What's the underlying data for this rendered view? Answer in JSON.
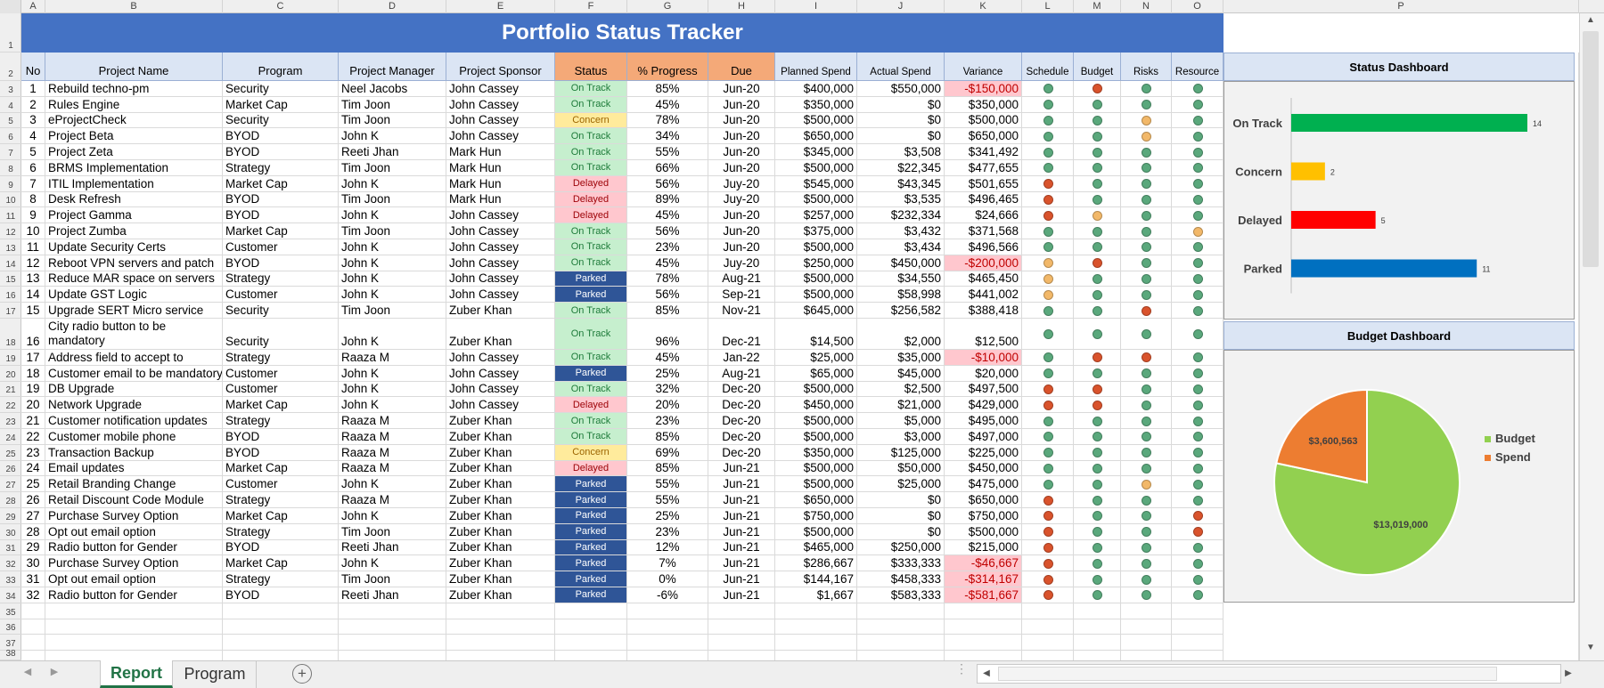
{
  "column_letters": [
    "A",
    "B",
    "C",
    "D",
    "E",
    "F",
    "G",
    "H",
    "I",
    "J",
    "K",
    "L",
    "M",
    "N",
    "O",
    "P"
  ],
  "title": "Portfolio Status Tracker",
  "headers": {
    "no": "No",
    "project_name": "Project Name",
    "program": "Program",
    "project_manager": "Project Manager",
    "project_sponsor": "Project Sponsor",
    "status": "Status",
    "progress": "% Progress",
    "due": "Due",
    "planned_spend": "Planned Spend",
    "actual_spend": "Actual Spend",
    "variance": "Variance",
    "schedule": "Schedule",
    "budget": "Budget",
    "risks": "Risks",
    "resource": "Resource"
  },
  "rows": [
    {
      "row": "3",
      "no": "1",
      "name": "Rebuild techno-pm",
      "program": "Security",
      "pm": "Neel Jacobs",
      "sponsor": "John Cassey",
      "status": "On Track",
      "progress": "85%",
      "due": "Jun-20",
      "planned": "$400,000",
      "actual": "$550,000",
      "variance": "-$150,000",
      "schedule": "green",
      "budget": "red",
      "risks": "green",
      "resource": "green"
    },
    {
      "row": "4",
      "no": "2",
      "name": "Rules Engine",
      "program": "Market Cap",
      "pm": "Tim Joon",
      "sponsor": "John Cassey",
      "status": "On Track",
      "progress": "45%",
      "due": "Jun-20",
      "planned": "$350,000",
      "actual": "$0",
      "variance": "$350,000",
      "schedule": "green",
      "budget": "green",
      "risks": "green",
      "resource": "green"
    },
    {
      "row": "5",
      "no": "3",
      "name": "eProjectCheck",
      "program": "Security",
      "pm": "Tim Joon",
      "sponsor": "John Cassey",
      "status": "Concern",
      "progress": "78%",
      "due": "Jun-20",
      "planned": "$500,000",
      "actual": "$0",
      "variance": "$500,000",
      "schedule": "green",
      "budget": "green",
      "risks": "amber",
      "resource": "green"
    },
    {
      "row": "6",
      "no": "4",
      "name": "Project Beta",
      "program": "BYOD",
      "pm": "John K",
      "sponsor": "John Cassey",
      "status": "On Track",
      "progress": "34%",
      "due": "Jun-20",
      "planned": "$650,000",
      "actual": "$0",
      "variance": "$650,000",
      "schedule": "green",
      "budget": "green",
      "risks": "amber",
      "resource": "green"
    },
    {
      "row": "7",
      "no": "5",
      "name": "Project Zeta",
      "program": "BYOD",
      "pm": "Reeti Jhan",
      "sponsor": "Mark Hun",
      "status": "On Track",
      "progress": "55%",
      "due": "Jun-20",
      "planned": "$345,000",
      "actual": "$3,508",
      "variance": "$341,492",
      "schedule": "green",
      "budget": "green",
      "risks": "green",
      "resource": "green"
    },
    {
      "row": "8",
      "no": "6",
      "name": "BRMS Implementation",
      "program": "Strategy",
      "pm": "Tim Joon",
      "sponsor": "Mark Hun",
      "status": "On Track",
      "progress": "66%",
      "due": "Jun-20",
      "planned": "$500,000",
      "actual": "$22,345",
      "variance": "$477,655",
      "schedule": "green",
      "budget": "green",
      "risks": "green",
      "resource": "green"
    },
    {
      "row": "9",
      "no": "7",
      "name": "ITIL Implementation",
      "program": "Market Cap",
      "pm": "John K",
      "sponsor": "Mark Hun",
      "status": "Delayed",
      "progress": "56%",
      "due": "Juy-20",
      "planned": "$545,000",
      "actual": "$43,345",
      "variance": "$501,655",
      "schedule": "red",
      "budget": "green",
      "risks": "green",
      "resource": "green"
    },
    {
      "row": "10",
      "no": "8",
      "name": "Desk Refresh",
      "program": "BYOD",
      "pm": "Tim Joon",
      "sponsor": "Mark Hun",
      "status": "Delayed",
      "progress": "89%",
      "due": "Juy-20",
      "planned": "$500,000",
      "actual": "$3,535",
      "variance": "$496,465",
      "schedule": "red",
      "budget": "green",
      "risks": "green",
      "resource": "green"
    },
    {
      "row": "11",
      "no": "9",
      "name": "Project Gamma",
      "program": "BYOD",
      "pm": "John K",
      "sponsor": "John Cassey",
      "status": "Delayed",
      "progress": "45%",
      "due": "Jun-20",
      "planned": "$257,000",
      "actual": "$232,334",
      "variance": "$24,666",
      "schedule": "red",
      "budget": "amber",
      "risks": "green",
      "resource": "green"
    },
    {
      "row": "12",
      "no": "10",
      "name": "Project Zumba",
      "program": "Market Cap",
      "pm": "Tim Joon",
      "sponsor": "John Cassey",
      "status": "On Track",
      "progress": "56%",
      "due": "Jun-20",
      "planned": "$375,000",
      "actual": "$3,432",
      "variance": "$371,568",
      "schedule": "green",
      "budget": "green",
      "risks": "green",
      "resource": "amber"
    },
    {
      "row": "13",
      "no": "11",
      "name": "Update Security Certs",
      "program": "Customer",
      "pm": "John K",
      "sponsor": "John Cassey",
      "status": "On Track",
      "progress": "23%",
      "due": "Jun-20",
      "planned": "$500,000",
      "actual": "$3,434",
      "variance": "$496,566",
      "schedule": "green",
      "budget": "green",
      "risks": "green",
      "resource": "green"
    },
    {
      "row": "14",
      "no": "12",
      "name": "Reboot VPN servers and patch",
      "program": "BYOD",
      "pm": "John K",
      "sponsor": "John Cassey",
      "status": "On Track",
      "progress": "45%",
      "due": "Juy-20",
      "planned": "$250,000",
      "actual": "$450,000",
      "variance": "-$200,000",
      "schedule": "amber",
      "budget": "red",
      "risks": "green",
      "resource": "green"
    },
    {
      "row": "15",
      "no": "13",
      "name": "Reduce MAR space on servers",
      "program": "Strategy",
      "pm": "John K",
      "sponsor": "John Cassey",
      "status": "Parked",
      "progress": "78%",
      "due": "Aug-21",
      "planned": "$500,000",
      "actual": "$34,550",
      "variance": "$465,450",
      "schedule": "amber",
      "budget": "green",
      "risks": "green",
      "resource": "green"
    },
    {
      "row": "16",
      "no": "14",
      "name": "Update GST Logic",
      "program": "Customer",
      "pm": "John K",
      "sponsor": "John Cassey",
      "status": "Parked",
      "progress": "56%",
      "due": "Sep-21",
      "planned": "$500,000",
      "actual": "$58,998",
      "variance": "$441,002",
      "schedule": "amber",
      "budget": "green",
      "risks": "green",
      "resource": "green"
    },
    {
      "row": "17",
      "no": "15",
      "name": "Upgrade SERT Micro service",
      "program": "Security",
      "pm": "Tim Joon",
      "sponsor": "Zuber Khan",
      "status": "On Track",
      "progress": "85%",
      "due": "Nov-21",
      "planned": "$645,000",
      "actual": "$256,582",
      "variance": "$388,418",
      "schedule": "green",
      "budget": "green",
      "risks": "red",
      "resource": "green"
    },
    {
      "row": "18",
      "no": "16",
      "name": "City radio button to be mandatory",
      "program": "Security",
      "pm": "John K",
      "sponsor": "Zuber Khan",
      "status": "On Track",
      "progress": "96%",
      "due": "Dec-21",
      "planned": "$14,500",
      "actual": "$2,000",
      "variance": "$12,500",
      "schedule": "green",
      "budget": "green",
      "risks": "green",
      "resource": "green"
    },
    {
      "row": "19",
      "no": "17",
      "name": "Address field to accept to",
      "program": "Strategy",
      "pm": "Raaza M",
      "sponsor": "John Cassey",
      "status": "On Track",
      "progress": "45%",
      "due": "Jan-22",
      "planned": "$25,000",
      "actual": "$35,000",
      "variance": "-$10,000",
      "schedule": "green",
      "budget": "red",
      "risks": "red",
      "resource": "green"
    },
    {
      "row": "20",
      "no": "18",
      "name": "Customer email to be mandatory",
      "program": "Customer",
      "pm": "John K",
      "sponsor": "John Cassey",
      "status": "Parked",
      "progress": "25%",
      "due": "Aug-21",
      "planned": "$65,000",
      "actual": "$45,000",
      "variance": "$20,000",
      "schedule": "green",
      "budget": "green",
      "risks": "green",
      "resource": "green"
    },
    {
      "row": "21",
      "no": "19",
      "name": "DB Upgrade",
      "program": "Customer",
      "pm": "John K",
      "sponsor": "John Cassey",
      "status": "On Track",
      "progress": "32%",
      "due": "Dec-20",
      "planned": "$500,000",
      "actual": "$2,500",
      "variance": "$497,500",
      "schedule": "red",
      "budget": "red",
      "risks": "green",
      "resource": "green"
    },
    {
      "row": "22",
      "no": "20",
      "name": "Network Upgrade",
      "program": "Market Cap",
      "pm": "John K",
      "sponsor": "John Cassey",
      "status": "Delayed",
      "progress": "20%",
      "due": "Dec-20",
      "planned": "$450,000",
      "actual": "$21,000",
      "variance": "$429,000",
      "schedule": "red",
      "budget": "red",
      "risks": "green",
      "resource": "green"
    },
    {
      "row": "23",
      "no": "21",
      "name": "Customer notification updates",
      "program": "Strategy",
      "pm": "Raaza M",
      "sponsor": "Zuber Khan",
      "status": "On Track",
      "progress": "23%",
      "due": "Dec-20",
      "planned": "$500,000",
      "actual": "$5,000",
      "variance": "$495,000",
      "schedule": "green",
      "budget": "green",
      "risks": "green",
      "resource": "green"
    },
    {
      "row": "24",
      "no": "22",
      "name": "Customer mobile phone",
      "program": "BYOD",
      "pm": "Raaza M",
      "sponsor": "Zuber Khan",
      "status": "On Track",
      "progress": "85%",
      "due": "Dec-20",
      "planned": "$500,000",
      "actual": "$3,000",
      "variance": "$497,000",
      "schedule": "green",
      "budget": "green",
      "risks": "green",
      "resource": "green"
    },
    {
      "row": "25",
      "no": "23",
      "name": "Transaction Backup",
      "program": "BYOD",
      "pm": "Raaza M",
      "sponsor": "Zuber Khan",
      "status": "Concern",
      "progress": "69%",
      "due": "Dec-20",
      "planned": "$350,000",
      "actual": "$125,000",
      "variance": "$225,000",
      "schedule": "green",
      "budget": "green",
      "risks": "green",
      "resource": "green"
    },
    {
      "row": "26",
      "no": "24",
      "name": "Email updates",
      "program": "Market Cap",
      "pm": "Raaza M",
      "sponsor": "Zuber Khan",
      "status": "Delayed",
      "progress": "85%",
      "due": "Jun-21",
      "planned": "$500,000",
      "actual": "$50,000",
      "variance": "$450,000",
      "schedule": "green",
      "budget": "green",
      "risks": "green",
      "resource": "green"
    },
    {
      "row": "27",
      "no": "25",
      "name": "Retail Branding Change",
      "program": "Customer",
      "pm": "John K",
      "sponsor": "Zuber Khan",
      "status": "Parked",
      "progress": "55%",
      "due": "Jun-21",
      "planned": "$500,000",
      "actual": "$25,000",
      "variance": "$475,000",
      "schedule": "green",
      "budget": "green",
      "risks": "amber",
      "resource": "green"
    },
    {
      "row": "28",
      "no": "26",
      "name": "Retail Discount Code Module",
      "program": "Strategy",
      "pm": "Raaza M",
      "sponsor": "Zuber Khan",
      "status": "Parked",
      "progress": "55%",
      "due": "Jun-21",
      "planned": "$650,000",
      "actual": "$0",
      "variance": "$650,000",
      "schedule": "red",
      "budget": "green",
      "risks": "green",
      "resource": "green"
    },
    {
      "row": "29",
      "no": "27",
      "name": "Purchase Survey Option",
      "program": "Market Cap",
      "pm": "John K",
      "sponsor": "Zuber Khan",
      "status": "Parked",
      "progress": "25%",
      "due": "Jun-21",
      "planned": "$750,000",
      "actual": "$0",
      "variance": "$750,000",
      "schedule": "red",
      "budget": "green",
      "risks": "green",
      "resource": "red"
    },
    {
      "row": "30",
      "no": "28",
      "name": "Opt out email option",
      "program": "Strategy",
      "pm": "Tim Joon",
      "sponsor": "Zuber Khan",
      "status": "Parked",
      "progress": "23%",
      "due": "Jun-21",
      "planned": "$500,000",
      "actual": "$0",
      "variance": "$500,000",
      "schedule": "red",
      "budget": "green",
      "risks": "green",
      "resource": "red"
    },
    {
      "row": "31",
      "no": "29",
      "name": "Radio button for Gender",
      "program": "BYOD",
      "pm": "Reeti Jhan",
      "sponsor": "Zuber Khan",
      "status": "Parked",
      "progress": "12%",
      "due": "Jun-21",
      "planned": "$465,000",
      "actual": "$250,000",
      "variance": "$215,000",
      "schedule": "red",
      "budget": "green",
      "risks": "green",
      "resource": "green"
    },
    {
      "row": "32",
      "no": "30",
      "name": "Purchase Survey Option",
      "program": "Market Cap",
      "pm": "John K",
      "sponsor": "Zuber Khan",
      "status": "Parked",
      "progress": "7%",
      "due": "Jun-21",
      "planned": "$286,667",
      "actual": "$333,333",
      "variance": "-$46,667",
      "schedule": "red",
      "budget": "green",
      "risks": "green",
      "resource": "green"
    },
    {
      "row": "33",
      "no": "31",
      "name": "Opt out email option",
      "program": "Strategy",
      "pm": "Tim Joon",
      "sponsor": "Zuber Khan",
      "status": "Parked",
      "progress": "0%",
      "due": "Jun-21",
      "planned": "$144,167",
      "actual": "$458,333",
      "variance": "-$314,167",
      "schedule": "red",
      "budget": "green",
      "risks": "green",
      "resource": "green"
    },
    {
      "row": "34",
      "no": "32",
      "name": "Radio button for Gender",
      "program": "BYOD",
      "pm": "Reeti Jhan",
      "sponsor": "Zuber Khan",
      "status": "Parked",
      "progress": "-6%",
      "due": "Jun-21",
      "planned": "$1,667",
      "actual": "$583,333",
      "variance": "-$581,667",
      "schedule": "red",
      "budget": "green",
      "risks": "green",
      "resource": "green"
    }
  ],
  "empty_rows": [
    "35",
    "36",
    "37",
    "38"
  ],
  "status_dashboard_title": "Status Dashboard",
  "budget_dashboard_title": "Budget Dashboard",
  "colors": {
    "title_bg": "#4472c4",
    "dot_green": "#5aa87c",
    "dot_red": "#d9532c",
    "dot_amber": "#f2b869",
    "on_track_bar": "#00b050",
    "concern_bar": "#ffc000",
    "delayed_bar": "#ff0000",
    "parked_bar": "#0070c0",
    "budget_slice": "#92d050",
    "spend_slice": "#ed7d31"
  },
  "chart_data": [
    {
      "type": "bar",
      "orientation": "horizontal",
      "title": "Status Dashboard",
      "categories": [
        "On Track",
        "Concern",
        "Delayed",
        "Parked"
      ],
      "values": [
        14,
        2,
        5,
        11
      ],
      "colors": [
        "#00b050",
        "#ffc000",
        "#ff0000",
        "#0070c0"
      ],
      "data_labels": true,
      "xlim": [
        0,
        14
      ],
      "grid": false,
      "legend": false
    },
    {
      "type": "pie",
      "title": "Budget Dashboard",
      "categories": [
        "Budget",
        "Spend"
      ],
      "values": [
        13019000,
        3600563
      ],
      "value_labels": [
        "$13,019,000",
        "$3,600,563"
      ],
      "colors": [
        "#92d050",
        "#ed7d31"
      ],
      "legend": "right"
    }
  ],
  "sheet_tabs": [
    {
      "label": "Report",
      "active": true
    },
    {
      "label": "Program",
      "active": false
    }
  ],
  "add_sheet_label": "+"
}
